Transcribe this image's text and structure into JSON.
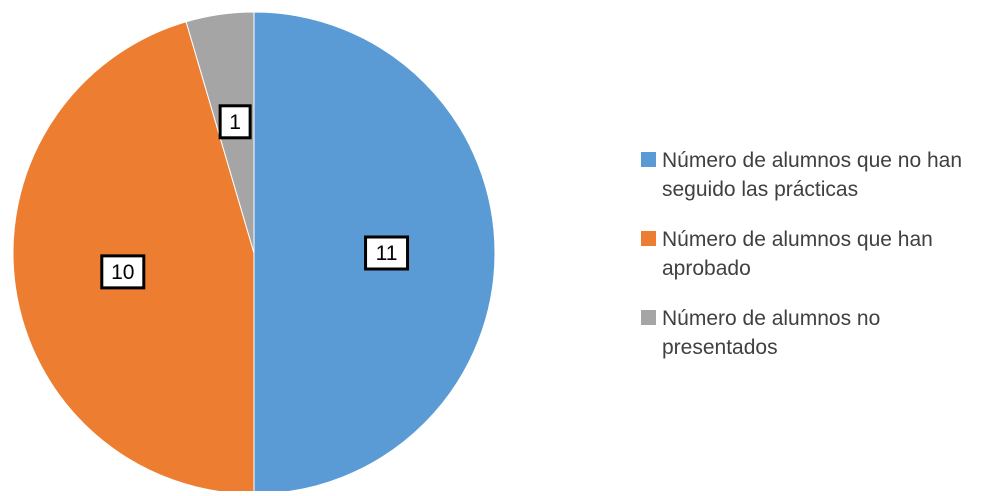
{
  "chart_data": {
    "type": "pie",
    "categories": [
      "Número de alumnos que no han seguido las prácticas",
      "Número de alumnos que han aprobado",
      "Número de alumnos no presentados"
    ],
    "values": [
      11,
      10,
      1
    ],
    "data_labels": [
      "11",
      "10",
      "1"
    ],
    "colors": [
      "#5B9BD5",
      "#ED7D31",
      "#A5A5A5"
    ],
    "legend_position": "right",
    "title": ""
  }
}
